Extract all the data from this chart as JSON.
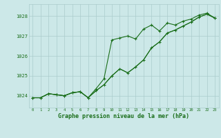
{
  "title": "Graphe pression niveau de la mer (hPa)",
  "bg_color": "#cce8e8",
  "grid_color": "#aacccc",
  "line_color": "#1a6e1a",
  "x_labels": [
    "0",
    "1",
    "2",
    "3",
    "4",
    "5",
    "6",
    "7",
    "8",
    "9",
    "10",
    "11",
    "12",
    "13",
    "14",
    "15",
    "16",
    "17",
    "18",
    "19",
    "20",
    "21",
    "22",
    "23"
  ],
  "ylim": [
    1023.4,
    1028.6
  ],
  "yticks": [
    1024,
    1025,
    1026,
    1027,
    1028
  ],
  "series1": [
    1023.9,
    1023.9,
    1024.1,
    1024.05,
    1024.0,
    1024.15,
    1024.2,
    1023.9,
    1024.35,
    1024.85,
    1026.8,
    1026.9,
    1027.0,
    1026.85,
    1027.35,
    1027.55,
    1027.25,
    1027.65,
    1027.55,
    1027.75,
    1027.85,
    1028.05,
    1028.15,
    1027.9
  ],
  "series2": [
    1023.9,
    1023.9,
    1024.1,
    1024.05,
    1024.0,
    1024.15,
    1024.2,
    1023.9,
    1024.25,
    1024.55,
    1025.0,
    1025.35,
    1025.15,
    1025.45,
    1025.8,
    1026.4,
    1026.7,
    1027.15,
    1027.3,
    1027.5,
    1027.7,
    1027.95,
    1028.1,
    1027.9
  ],
  "series3": [
    1023.9,
    1023.9,
    1024.1,
    1024.05,
    1024.0,
    1024.15,
    1024.2,
    1023.9,
    1024.25,
    1024.55,
    1025.0,
    1025.35,
    1025.15,
    1025.45,
    1025.8,
    1026.4,
    1026.7,
    1027.15,
    1027.3,
    1027.5,
    1027.7,
    1027.95,
    1028.1,
    1027.9
  ]
}
